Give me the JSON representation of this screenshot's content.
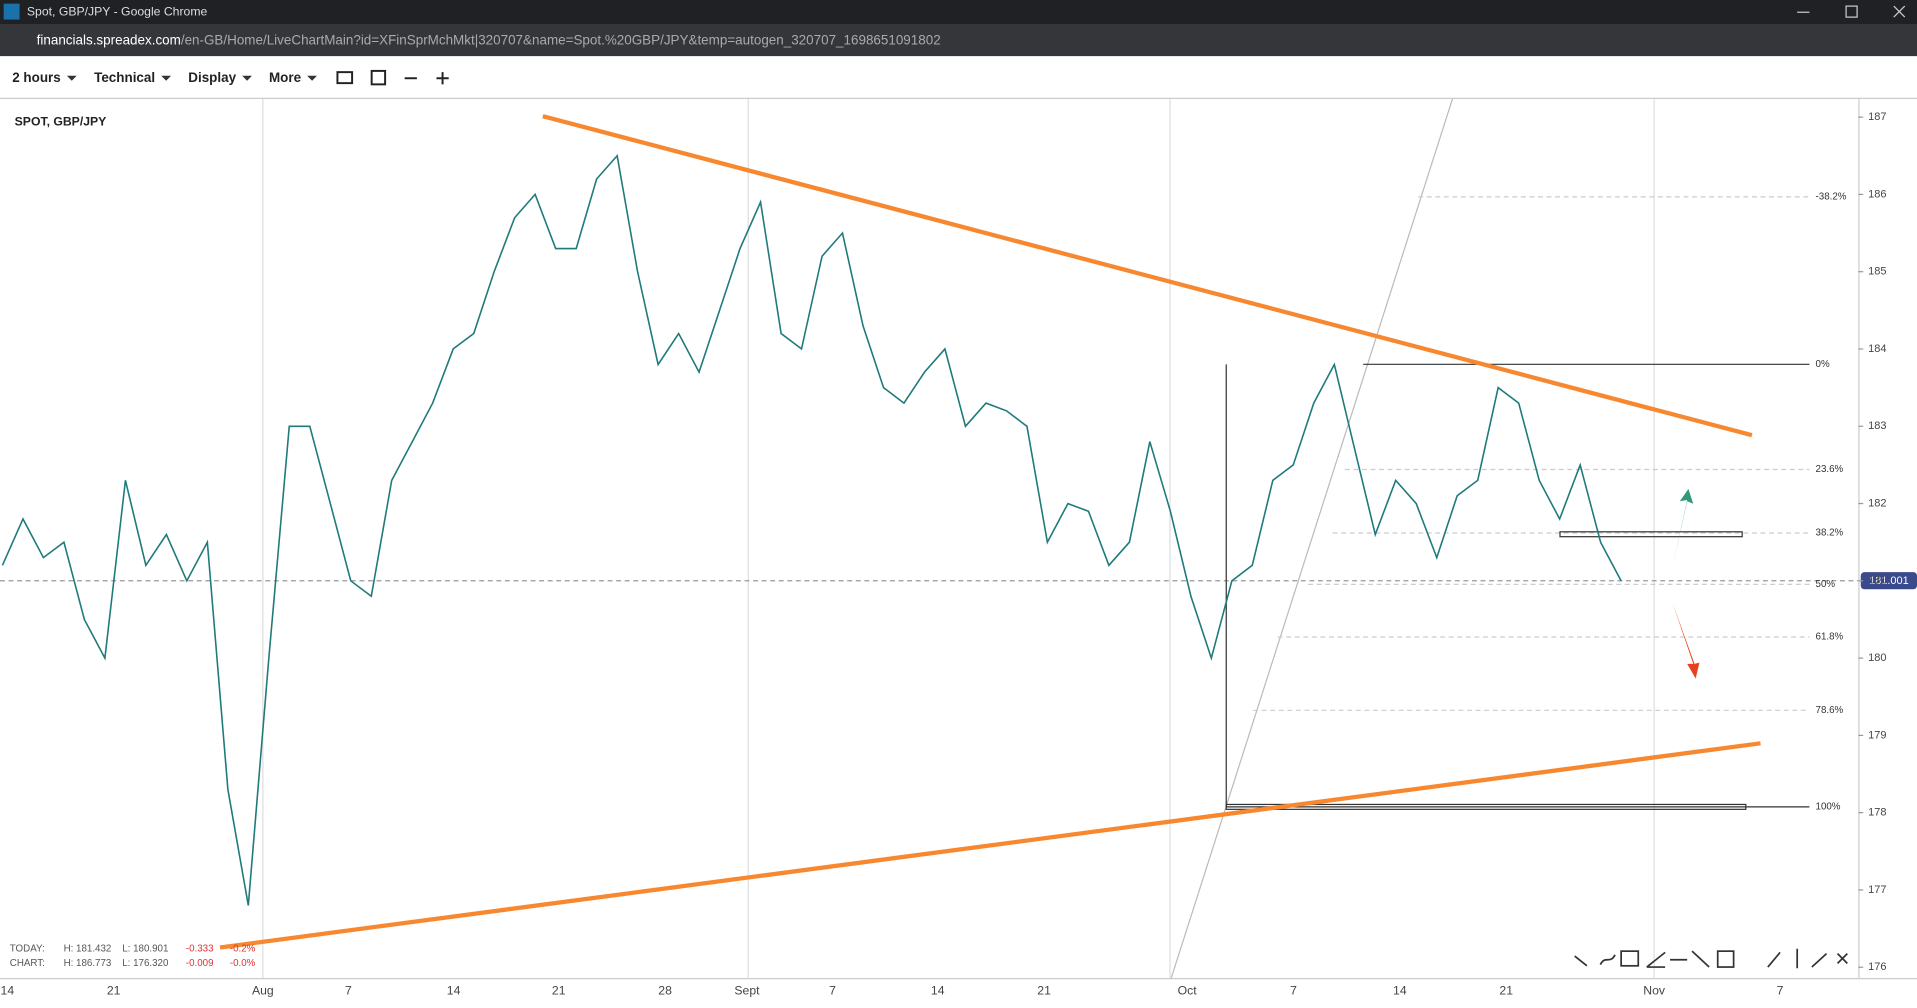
{
  "browser": {
    "title": "Spot, GBP/JPY - Google Chrome",
    "url_domain": "financials.spreadex.com",
    "url_path": "/en-GB/Home/LiveChartMain?id=XFinSprMchMkt|320707&name=Spot.%20GBP/JPY&temp=autogen_320707_1698651091802"
  },
  "toolbar": {
    "items": [
      "2 hours",
      "Technical",
      "Display",
      "More"
    ]
  },
  "chart": {
    "title": "SPOT, GBP/JPY",
    "ylim": [
      175.86,
      187.25
    ],
    "yticks": [
      176,
      177,
      178,
      179,
      180,
      181,
      182,
      183,
      184,
      185,
      186,
      187
    ],
    "x_labels": [
      "14",
      "21",
      "Aug",
      "7",
      "14",
      "21",
      "28",
      "Sept",
      "7",
      "14",
      "21",
      "Oct",
      "7",
      "14",
      "21",
      "Nov",
      "7"
    ],
    "fib_levels": [
      "-38.2%",
      "0%",
      "23.6%",
      "38.2%",
      "50%",
      "61.8%",
      "78.6%",
      "100%"
    ],
    "last_price": 181.001,
    "closes": [
      181.2,
      181.8,
      181.3,
      181.5,
      180.5,
      180.0,
      182.3,
      181.2,
      181.6,
      181.0,
      181.5,
      178.3,
      176.8,
      180.0,
      183.0,
      183.0,
      182.0,
      181.0,
      180.8,
      182.3,
      182.8,
      183.3,
      184.0,
      184.2,
      185.0,
      185.7,
      186.0,
      185.3,
      185.3,
      186.2,
      186.5,
      185.0,
      183.8,
      184.2,
      183.7,
      184.5,
      185.3,
      185.9,
      184.2,
      184.0,
      185.2,
      185.5,
      184.3,
      183.5,
      183.3,
      183.7,
      184.0,
      183.0,
      183.3,
      183.2,
      183.0,
      181.5,
      182.0,
      181.9,
      181.2,
      181.5,
      182.8,
      181.9,
      180.8,
      180.0,
      181.0,
      181.2,
      182.3,
      182.5,
      183.3,
      183.8,
      182.7,
      181.6,
      182.3,
      182.0,
      181.3,
      182.1,
      182.3,
      183.5,
      183.3,
      182.3,
      181.8,
      182.5,
      181.5,
      181.0
    ],
    "stats": {
      "today": [
        "TODAY:",
        "H: 181.432",
        "L: 180.901",
        "-0.333",
        "-0.2%"
      ],
      "chart": [
        "CHART:",
        "H: 186.773",
        "L: 176.320",
        "-0.009",
        "-0.0%"
      ]
    }
  }
}
